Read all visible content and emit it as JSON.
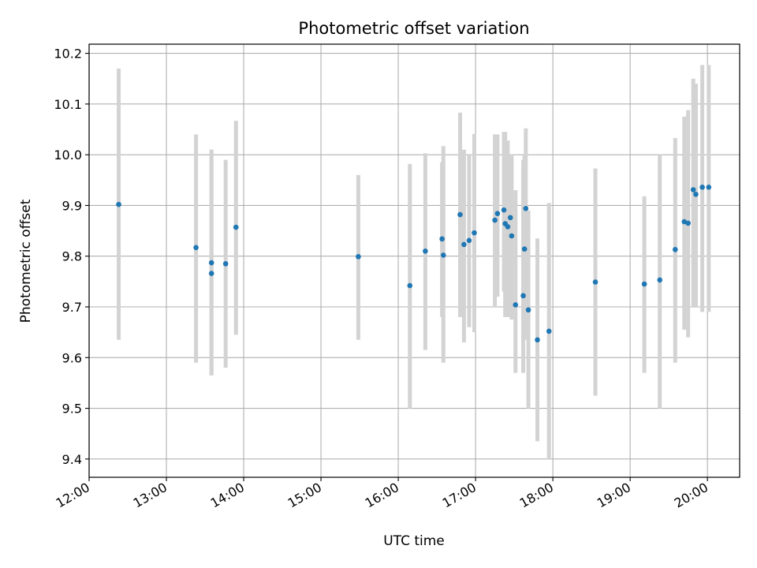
{
  "chart_data": {
    "type": "scatter",
    "title": "Photometric offset variation",
    "xlabel": "UTC time",
    "ylabel": "Photometric offset",
    "x_tick_labels": [
      "12:00",
      "13:00",
      "14:00",
      "15:00",
      "16:00",
      "17:00",
      "18:00",
      "19:00",
      "20:00"
    ],
    "y_tick_labels": [
      "9.4",
      "9.5",
      "9.6",
      "9.7",
      "9.8",
      "9.9",
      "10.0",
      "10.1",
      "10.2"
    ],
    "xlim": [
      "12:00",
      "20:25"
    ],
    "ylim": [
      9.364,
      10.218
    ],
    "grid": true,
    "x_tick_label_rotation": "30 degrees",
    "colors": {
      "points": "#1f77b4",
      "error_bars": "#d3d3d3",
      "grid": "#b0b0b0"
    },
    "series": [
      {
        "x": [
          "12:23",
          "13:23",
          "13:35",
          "13:35",
          "13:46",
          "13:54",
          "15:29",
          "16:09",
          "16:21",
          "16:34",
          "16:35",
          "16:48",
          "16:51",
          "16:55",
          "16:59",
          "17:15",
          "17:17",
          "17:22",
          "17:23",
          "17:25",
          "17:27",
          "17:28",
          "17:31",
          "17:37",
          "17:38",
          "17:39",
          "17:41",
          "17:48",
          "17:57",
          "18:33",
          "19:11",
          "19:23",
          "19:35",
          "19:42",
          "19:45",
          "19:49",
          "19:51",
          "19:56",
          "20:01"
        ],
        "y": [
          9.902,
          9.817,
          9.787,
          9.766,
          9.785,
          9.857,
          9.799,
          9.742,
          9.81,
          9.834,
          9.802,
          9.882,
          9.823,
          9.831,
          9.846,
          9.871,
          9.884,
          9.891,
          9.864,
          9.858,
          9.876,
          9.84,
          9.704,
          9.722,
          9.814,
          9.894,
          9.694,
          9.635,
          9.652,
          9.749,
          9.745,
          9.753,
          9.813,
          9.868,
          9.865,
          9.931,
          9.922,
          9.936,
          9.936
        ],
        "y_low": [
          9.635,
          9.59,
          9.565,
          9.565,
          9.58,
          9.645,
          9.635,
          9.5,
          9.615,
          9.68,
          9.59,
          9.68,
          9.63,
          9.66,
          9.65,
          9.7,
          9.72,
          9.73,
          9.68,
          9.68,
          9.69,
          9.675,
          9.57,
          9.57,
          9.635,
          9.73,
          9.5,
          9.435,
          9.4,
          9.525,
          9.57,
          9.5,
          9.59,
          9.655,
          9.64,
          9.7,
          9.7,
          9.69,
          9.69
        ],
        "y_high": [
          10.17,
          10.04,
          10.01,
          10.01,
          9.99,
          10.067,
          9.96,
          9.982,
          10.003,
          9.985,
          10.017,
          10.083,
          10.01,
          10.0,
          10.041,
          10.04,
          10.04,
          10.045,
          10.045,
          10.028,
          10.0,
          10.0,
          9.93,
          9.99,
          10.0,
          10.052,
          9.89,
          9.835,
          9.905,
          9.973,
          9.918,
          10.0,
          10.033,
          10.075,
          10.088,
          10.15,
          10.14,
          10.177,
          10.177
        ]
      }
    ]
  }
}
